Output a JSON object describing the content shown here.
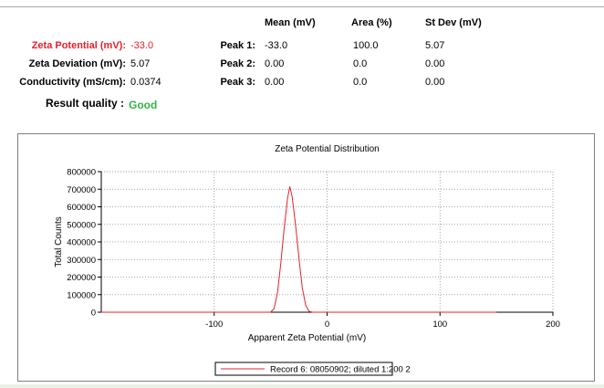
{
  "summary": {
    "headers": {
      "mean": "Mean (mV)",
      "area": "Area (%)",
      "stdev": "St Dev (mV)"
    },
    "zeta_potential": {
      "label": "Zeta Potential (mV):",
      "value": "-33.0"
    },
    "zeta_deviation": {
      "label": "Zeta Deviation (mV):",
      "value": "5.07"
    },
    "conductivity": {
      "label": "Conductivity (mS/cm):",
      "value": "0.0374"
    },
    "peaks": [
      {
        "label": "Peak 1:",
        "mean": "-33.0",
        "area": "100.0",
        "stdev": "5.07"
      },
      {
        "label": "Peak 2:",
        "mean": "0.00",
        "area": "0.0",
        "stdev": "0.00"
      },
      {
        "label": "Peak 3:",
        "mean": "0.00",
        "area": "0.0",
        "stdev": "0.00"
      }
    ],
    "result_quality": {
      "label": "Result quality :",
      "value": "Good"
    }
  },
  "colors": {
    "accent_red": "#e8202a",
    "good_green": "#34b34a",
    "series": "#e8202a"
  },
  "chart_data": {
    "type": "line",
    "title": "Zeta Potential Distribution",
    "xlabel": "Apparent Zeta Potential (mV)",
    "ylabel": "Total Counts",
    "xlim": [
      -200,
      200
    ],
    "ylim": [
      0,
      800000
    ],
    "xticks": [
      -100,
      0,
      100,
      200
    ],
    "yticks": [
      0,
      100000,
      200000,
      300000,
      400000,
      500000,
      600000,
      700000,
      800000
    ],
    "grid": true,
    "legend_position": "bottom-center",
    "series": [
      {
        "name": "Record 6: 08050902; diluted 1:200 2",
        "color": "#e8202a",
        "x": [
          -200,
          -150,
          -100,
          -60,
          -50,
          -47,
          -44,
          -41,
          -38,
          -35,
          -33,
          -31,
          -28,
          -25,
          -22,
          -19,
          -16,
          -13,
          -10,
          0,
          50,
          100,
          150
        ],
        "y": [
          0,
          0,
          0,
          0,
          0,
          20000,
          110000,
          280000,
          480000,
          650000,
          715000,
          660000,
          500000,
          310000,
          140000,
          40000,
          5000,
          0,
          0,
          0,
          0,
          0,
          0
        ]
      }
    ]
  }
}
